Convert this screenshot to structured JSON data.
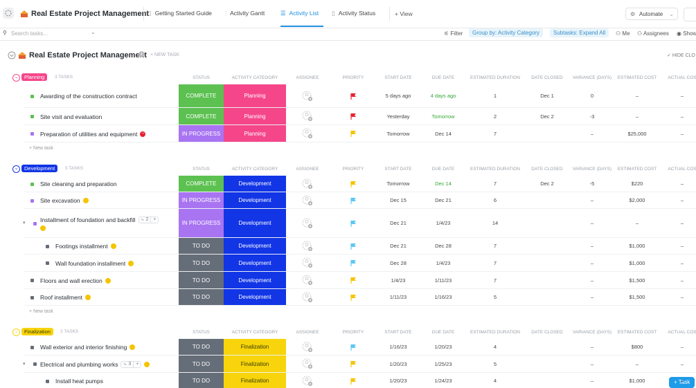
{
  "topbar": {
    "title": "Real Estate Project Management",
    "tabs": [
      "Getting Started Guide",
      "Activity Gantt",
      "Activity List",
      "Activity Status"
    ],
    "add_view": "+ View",
    "automate": "Automate"
  },
  "toolbar": {
    "search": "Search tasks...",
    "filter": "Filter",
    "group_by": "Group by: Activity Category",
    "subtasks": "Subtasks: Expand All",
    "me": "Me",
    "assignees": "Assignees",
    "show": "Show"
  },
  "list": {
    "title": "Real Estate Project Management",
    "new_task": "+ NEW TASK",
    "hide_closed": "HIDE CLO",
    "columns": [
      "STATUS",
      "ACTIVITY CATEGORY",
      "ASSIGNEE",
      "PRIORITY",
      "START DATE",
      "DUE DATE",
      "ESTIMATED DURATION",
      "DATE CLOSED",
      "VARIANCE (DAYS)",
      "ESTIMATED COST",
      "ACTUAL COS"
    ],
    "new_task_row": "+ New task",
    "add_task_button": "+ Task",
    "status_colors": {
      "COMPLETE": "#5cc151",
      "IN PROGRESS": "#a874f2",
      "TO DO": "#656d78"
    },
    "groups": [
      {
        "name": "Planning",
        "count": "3 TASKS",
        "color": "#f5468a",
        "text_color": "#ffffff",
        "tasks": [
          {
            "name": "Awarding of the construction contract",
            "status": "COMPLETE",
            "category": "Planning",
            "flag": "#e5232f",
            "start": "5 days ago",
            "due": "4 days ago",
            "due_color": "#35a635",
            "duration": "1",
            "closed": "Dec 1",
            "variance": "0",
            "est_cost": "–",
            "actual_cost": "–"
          },
          {
            "name": "Site visit and evaluation",
            "status": "COMPLETE",
            "category": "Planning",
            "flag": "#e5232f",
            "start": "Yesterday",
            "due": "Tomorrow",
            "due_color": "#35a635",
            "duration": "2",
            "closed": "Dec 2",
            "variance": "-3",
            "est_cost": "–",
            "actual_cost": "–"
          },
          {
            "name": "Preparation of utilities and equipment",
            "icon": "#e5232f",
            "status": "IN PROGRESS",
            "category": "Planning",
            "flag": "#f5c400",
            "start": "Tomorrow",
            "due": "Dec 14",
            "duration": "7",
            "variance": "–",
            "est_cost": "$25,000",
            "actual_cost": "–"
          }
        ]
      },
      {
        "name": "Development",
        "count": "5 TASKS",
        "color": "#1235e6",
        "text_color": "#ffffff",
        "tasks": [
          {
            "name": "Site cleaning and preparation",
            "status": "COMPLETE",
            "category": "Development",
            "flag": "#f5c400",
            "start": "Tomorrow",
            "due": "Dec 14",
            "due_color": "#35a635",
            "duration": "7",
            "closed": "Dec 2",
            "variance": "-5",
            "est_cost": "$220",
            "actual_cost": "–"
          },
          {
            "name": "Site excavation",
            "icon": "#f5c400",
            "status": "IN PROGRESS",
            "category": "Development",
            "flag": "#5bc8f0",
            "start": "Dec 15",
            "due": "Dec 21",
            "duration": "6",
            "variance": "–",
            "est_cost": "$2,000",
            "actual_cost": "–"
          },
          {
            "name": "Installment of foundation and backfill",
            "subtask_count": "2",
            "icon": "#f5c400",
            "status": "IN PROGRESS",
            "category": "Development",
            "flag": "#5bc8f0",
            "start": "Dec 21",
            "due": "1/4/23",
            "duration": "14",
            "variance": "–",
            "est_cost": "–",
            "actual_cost": "–",
            "subtasks": [
              {
                "name": "Footings installment",
                "icon": "#f5c400",
                "status": "TO DO",
                "category": "Development",
                "flag": "#5bc8f0",
                "start": "Dec 21",
                "due": "Dec 28",
                "duration": "7",
                "variance": "–",
                "est_cost": "$1,000",
                "actual_cost": "–"
              },
              {
                "name": "Wall foundation installment",
                "icon": "#f5c400",
                "status": "TO DO",
                "category": "Development",
                "flag": "#5bc8f0",
                "start": "Dec 28",
                "due": "1/4/23",
                "duration": "7",
                "variance": "–",
                "est_cost": "$1,000",
                "actual_cost": "–"
              }
            ]
          },
          {
            "name": "Floors and wall erection",
            "icon": "#f5c400",
            "status": "TO DO",
            "category": "Development",
            "flag": "#f5c400",
            "start": "1/4/23",
            "due": "1/11/23",
            "duration": "7",
            "variance": "–",
            "est_cost": "$1,500",
            "actual_cost": "–"
          },
          {
            "name": "Roof installment",
            "icon": "#f5c400",
            "status": "TO DO",
            "category": "Development",
            "flag": "#f5c400",
            "start": "1/11/23",
            "due": "1/16/23",
            "duration": "5",
            "variance": "–",
            "est_cost": "$1,500",
            "actual_cost": "–"
          }
        ]
      },
      {
        "name": "Finalization",
        "count": "2 TASKS",
        "color": "#f7d40c",
        "text_color": "#3a3a00",
        "tasks": [
          {
            "name": "Wall exterior and interior finishing",
            "icon": "#f5c400",
            "status": "TO DO",
            "category": "Finalization",
            "flag": "#5bc8f0",
            "start": "1/16/23",
            "due": "1/20/23",
            "duration": "4",
            "variance": "–",
            "est_cost": "$800",
            "actual_cost": "–"
          },
          {
            "name": "Electrical and plumbing works",
            "subtask_count": "3",
            "icon": "#f5c400",
            "status": "TO DO",
            "category": "Finalization",
            "flag": "#f5c400",
            "start": "1/20/23",
            "due": "1/25/23",
            "duration": "5",
            "variance": "–",
            "est_cost": "–",
            "actual_cost": "–",
            "subtasks": [
              {
                "name": "Install heat pumps",
                "status": "TO DO",
                "category": "Finalization",
                "flag": "#f5c400",
                "start": "1/20/23",
                "due": "1/24/23",
                "duration": "4",
                "variance": "–",
                "est_cost": "$1,000",
                "actual_cost": "–"
              }
            ]
          }
        ]
      }
    ]
  }
}
